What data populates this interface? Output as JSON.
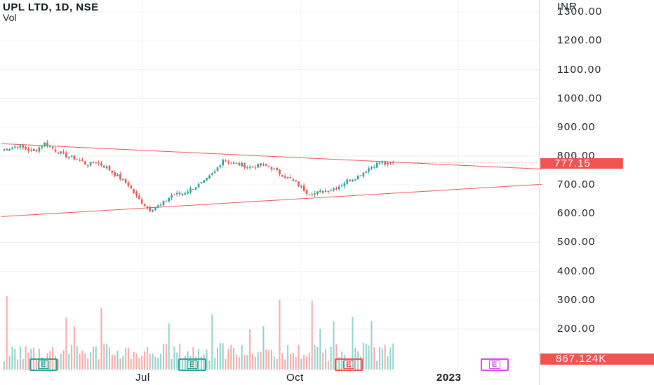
{
  "header": {
    "symbol_title": "UPL LTD, 1D, NSE",
    "indicator_label": "Vol"
  },
  "price_axis": {
    "currency": "INR",
    "ticks": [
      "1300.00",
      "1200.00",
      "1100.00",
      "1000.00",
      "900.00",
      "800.00",
      "700.00",
      "600.00",
      "500.00",
      "400.00",
      "300.00",
      "200.00"
    ]
  },
  "time_axis": {
    "labels": [
      "Jul",
      "Oct",
      "2023"
    ]
  },
  "last_price_label": "777.15",
  "last_volume_label": "867.124K",
  "earnings_markers": [
    {
      "label": "E",
      "color": "#26a69a"
    },
    {
      "label": "E",
      "color": "#26a69a"
    },
    {
      "label": "E",
      "color": "#f05350"
    },
    {
      "label": "E",
      "color": "#e040fb"
    }
  ],
  "colors": {
    "up": "#26a69a",
    "down": "#ef5350",
    "trendline": "#f05350",
    "grid": "#eef0f3",
    "axis_border": "#d1d4dc"
  },
  "chart_data": {
    "type": "candlestick",
    "title": "UPL LTD, 1D, NSE",
    "currency": "INR",
    "ylim": [
      430,
      1315
    ],
    "last_price": 777.15,
    "last_volume": "867.124K",
    "price_path": [
      [
        0,
        820
      ],
      [
        6,
        835
      ],
      [
        12,
        815
      ],
      [
        16,
        845
      ],
      [
        20,
        820
      ],
      [
        24,
        800
      ],
      [
        28,
        790
      ],
      [
        32,
        770
      ],
      [
        35,
        780
      ],
      [
        39,
        760
      ],
      [
        43,
        730
      ],
      [
        47,
        700
      ],
      [
        50,
        660
      ],
      [
        53,
        630
      ],
      [
        55,
        615
      ],
      [
        59,
        630
      ],
      [
        63,
        665
      ],
      [
        67,
        670
      ],
      [
        71,
        690
      ],
      [
        75,
        710
      ],
      [
        79,
        745
      ],
      [
        82,
        790
      ],
      [
        85,
        775
      ],
      [
        89,
        770
      ],
      [
        92,
        760
      ],
      [
        96,
        768
      ],
      [
        99,
        765
      ],
      [
        103,
        740
      ],
      [
        107,
        720
      ],
      [
        110,
        700
      ],
      [
        113,
        675
      ],
      [
        116,
        670
      ],
      [
        120,
        680
      ],
      [
        124,
        690
      ],
      [
        128,
        715
      ],
      [
        132,
        730
      ],
      [
        136,
        758
      ],
      [
        140,
        778
      ],
      [
        143,
        770
      ],
      [
        145,
        777
      ]
    ],
    "trendlines": [
      {
        "name": "upper",
        "from": [
          0,
          843
        ],
        "to": [
          200,
          755
        ]
      },
      {
        "name": "lower",
        "from": [
          0,
          590
        ],
        "to": [
          200,
          702
        ]
      }
    ],
    "earnings_days": [
      15,
      70,
      128,
      182
    ]
  }
}
